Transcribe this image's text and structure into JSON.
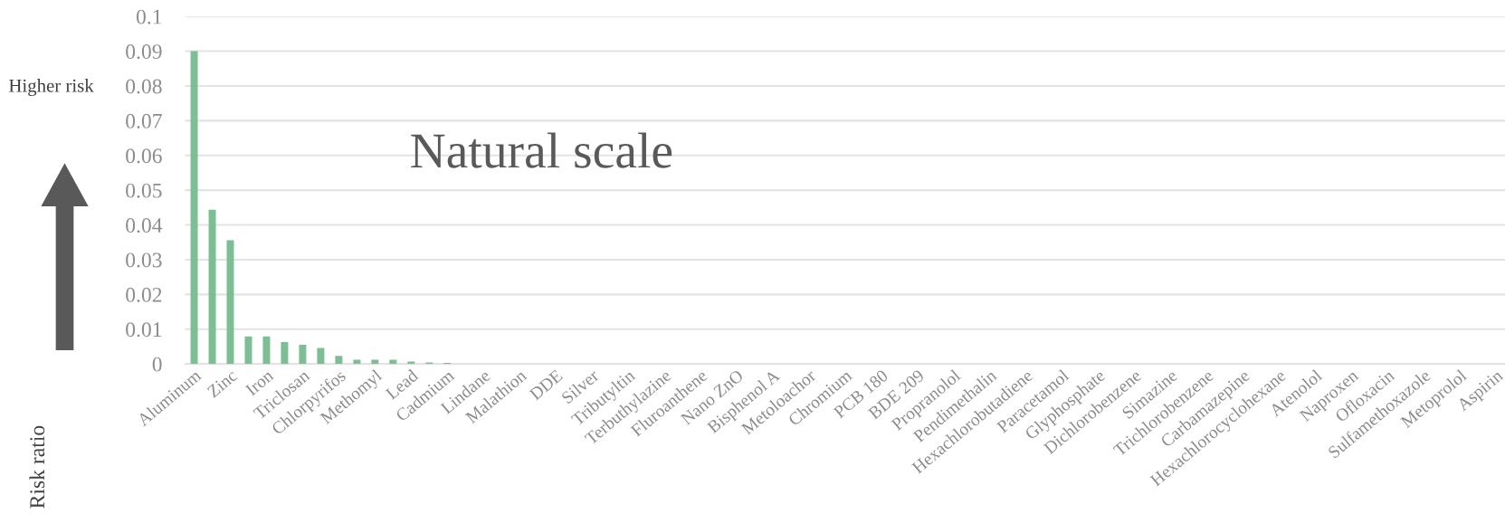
{
  "chart_data": {
    "type": "bar",
    "ylabel": "Risk ratio",
    "annotations": [
      "Higher risk",
      "Natural scale"
    ],
    "categories": [
      "Aluminum",
      null,
      "Zinc",
      null,
      "Iron",
      null,
      "Triclosan",
      null,
      "Chlorpyrifos",
      null,
      "Methomyl",
      null,
      "Lead",
      null,
      "Cadmium",
      null,
      "Lindane",
      null,
      "Malathion",
      null,
      "DDE",
      null,
      "Silver",
      null,
      "Tributyltin",
      null,
      "Terbuthylazine",
      null,
      "Fluroanthene",
      null,
      "Nano ZnO",
      null,
      "Bisphenol A",
      null,
      "Metoloachor",
      null,
      "Chromium",
      null,
      "PCB 180",
      null,
      "BDE 209",
      null,
      "Propranolol",
      null,
      "Pendimethalin",
      null,
      "Hexachlorobutadiene",
      null,
      "Paracetamol",
      null,
      "Glyphosphate",
      null,
      "Dichlorobenzene",
      null,
      "Simazine",
      null,
      "Trichlorobenzene",
      null,
      "Carbamazepine",
      null,
      "Hexachlorocyclohexane",
      null,
      "Atenolol",
      null,
      "Naproxen",
      null,
      "Ofloxacin",
      null,
      "Sulfamethoxazole",
      null,
      "Metoprolol",
      null,
      "Aspirin"
    ],
    "values": [
      0.09,
      0.0444,
      0.0356,
      0.0079,
      0.0079,
      0.0063,
      0.0055,
      0.0046,
      0.0023,
      0.0012,
      0.0012,
      0.0012,
      0.0007,
      0.0004,
      0.0003,
      null,
      null,
      null,
      null,
      null,
      0,
      0,
      0,
      0,
      0,
      0,
      0,
      0,
      0,
      0,
      0,
      0,
      0,
      0,
      0,
      0,
      0,
      0,
      0,
      0,
      0,
      0,
      0,
      0,
      0,
      0,
      0,
      0,
      0,
      0,
      0,
      0,
      0,
      0,
      0,
      0,
      0,
      0,
      0,
      0,
      0,
      0,
      0,
      0,
      0,
      0,
      0,
      0,
      0,
      0,
      0,
      0,
      0
    ],
    "color": "#7dbf95",
    "ylim": [
      0,
      0.1
    ],
    "yticks": [
      0,
      0.01,
      0.02,
      0.03,
      0.04,
      0.05,
      0.06,
      0.07,
      0.08,
      0.09,
      0.1
    ],
    "grid": "y",
    "legend": false
  }
}
